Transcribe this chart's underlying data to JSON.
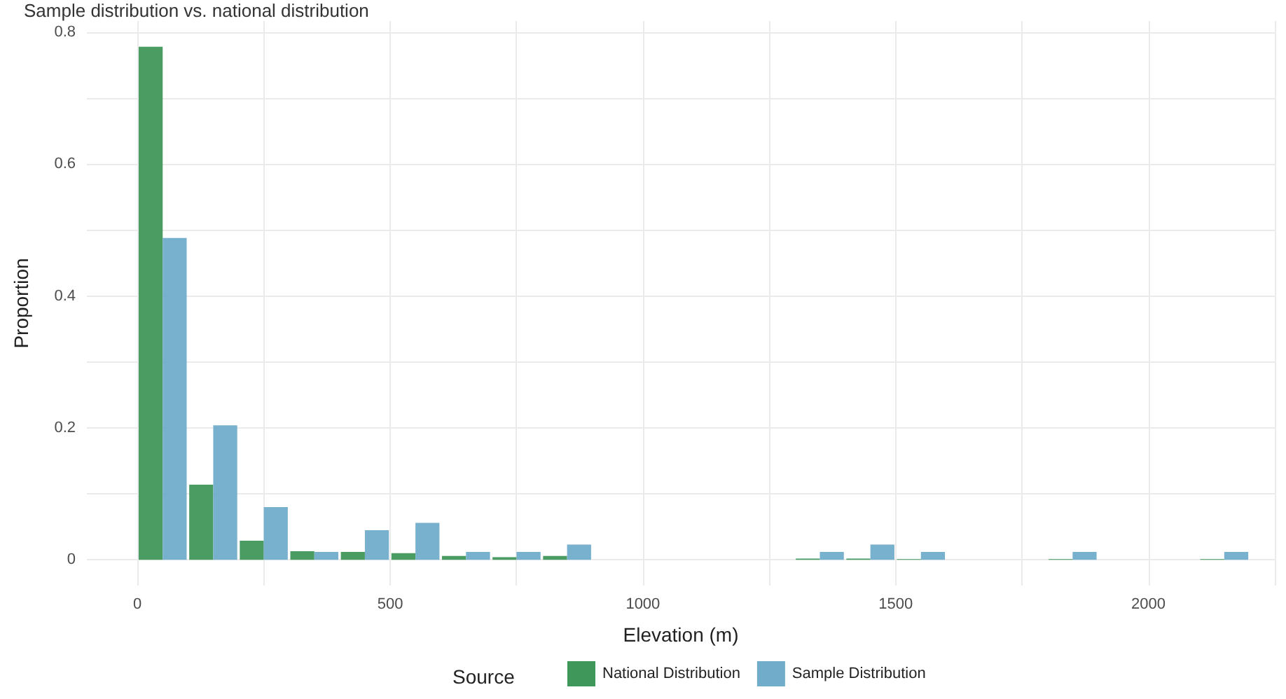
{
  "chart_data": {
    "type": "bar",
    "title": "Sample distribution vs. national distribution",
    "xlabel": "Elevation (m)",
    "ylabel": "Proportion",
    "legend_title": "Source",
    "x": [
      50,
      150,
      250,
      350,
      450,
      550,
      650,
      750,
      850,
      950,
      1050,
      1150,
      1250,
      1350,
      1450,
      1550,
      1650,
      1750,
      1850,
      1950,
      2050,
      2150
    ],
    "series": [
      {
        "name": "National Distribution",
        "color": "#40975a",
        "values": [
          0.778,
          0.114,
          0.029,
          0.013,
          0.012,
          0.01,
          0.006,
          0.004,
          0.006,
          null,
          null,
          null,
          null,
          0.002,
          0.002,
          0.001,
          null,
          null,
          0.001,
          null,
          null,
          0.001
        ]
      },
      {
        "name": "Sample Distribution",
        "color": "#71adcb",
        "values": [
          0.488,
          0.204,
          0.08,
          0.012,
          0.045,
          0.056,
          0.012,
          0.012,
          0.023,
          null,
          null,
          null,
          null,
          0.012,
          0.023,
          0.012,
          null,
          null,
          0.012,
          null,
          null,
          0.012
        ]
      }
    ],
    "xlim": [
      -100,
      2250
    ],
    "xticks": [
      0,
      {
        "value": 250,
        "label": null
      },
      500,
      {
        "value": 750,
        "label": null
      },
      1000,
      {
        "value": 1250,
        "label": null
      },
      1500,
      {
        "value": 1750,
        "label": null
      },
      2000,
      {
        "value": 2250,
        "label": null
      }
    ],
    "ylim": [
      -0.039,
      0.817
    ],
    "yticks": [
      0,
      {
        "value": 0.1,
        "label": null
      },
      0.2,
      {
        "value": 0.3,
        "label": null
      },
      0.4,
      {
        "value": 0.5,
        "label": null
      },
      0.6,
      {
        "value": 0.7,
        "label": null
      },
      0.8
    ],
    "grid": true,
    "legend": "bottom"
  }
}
